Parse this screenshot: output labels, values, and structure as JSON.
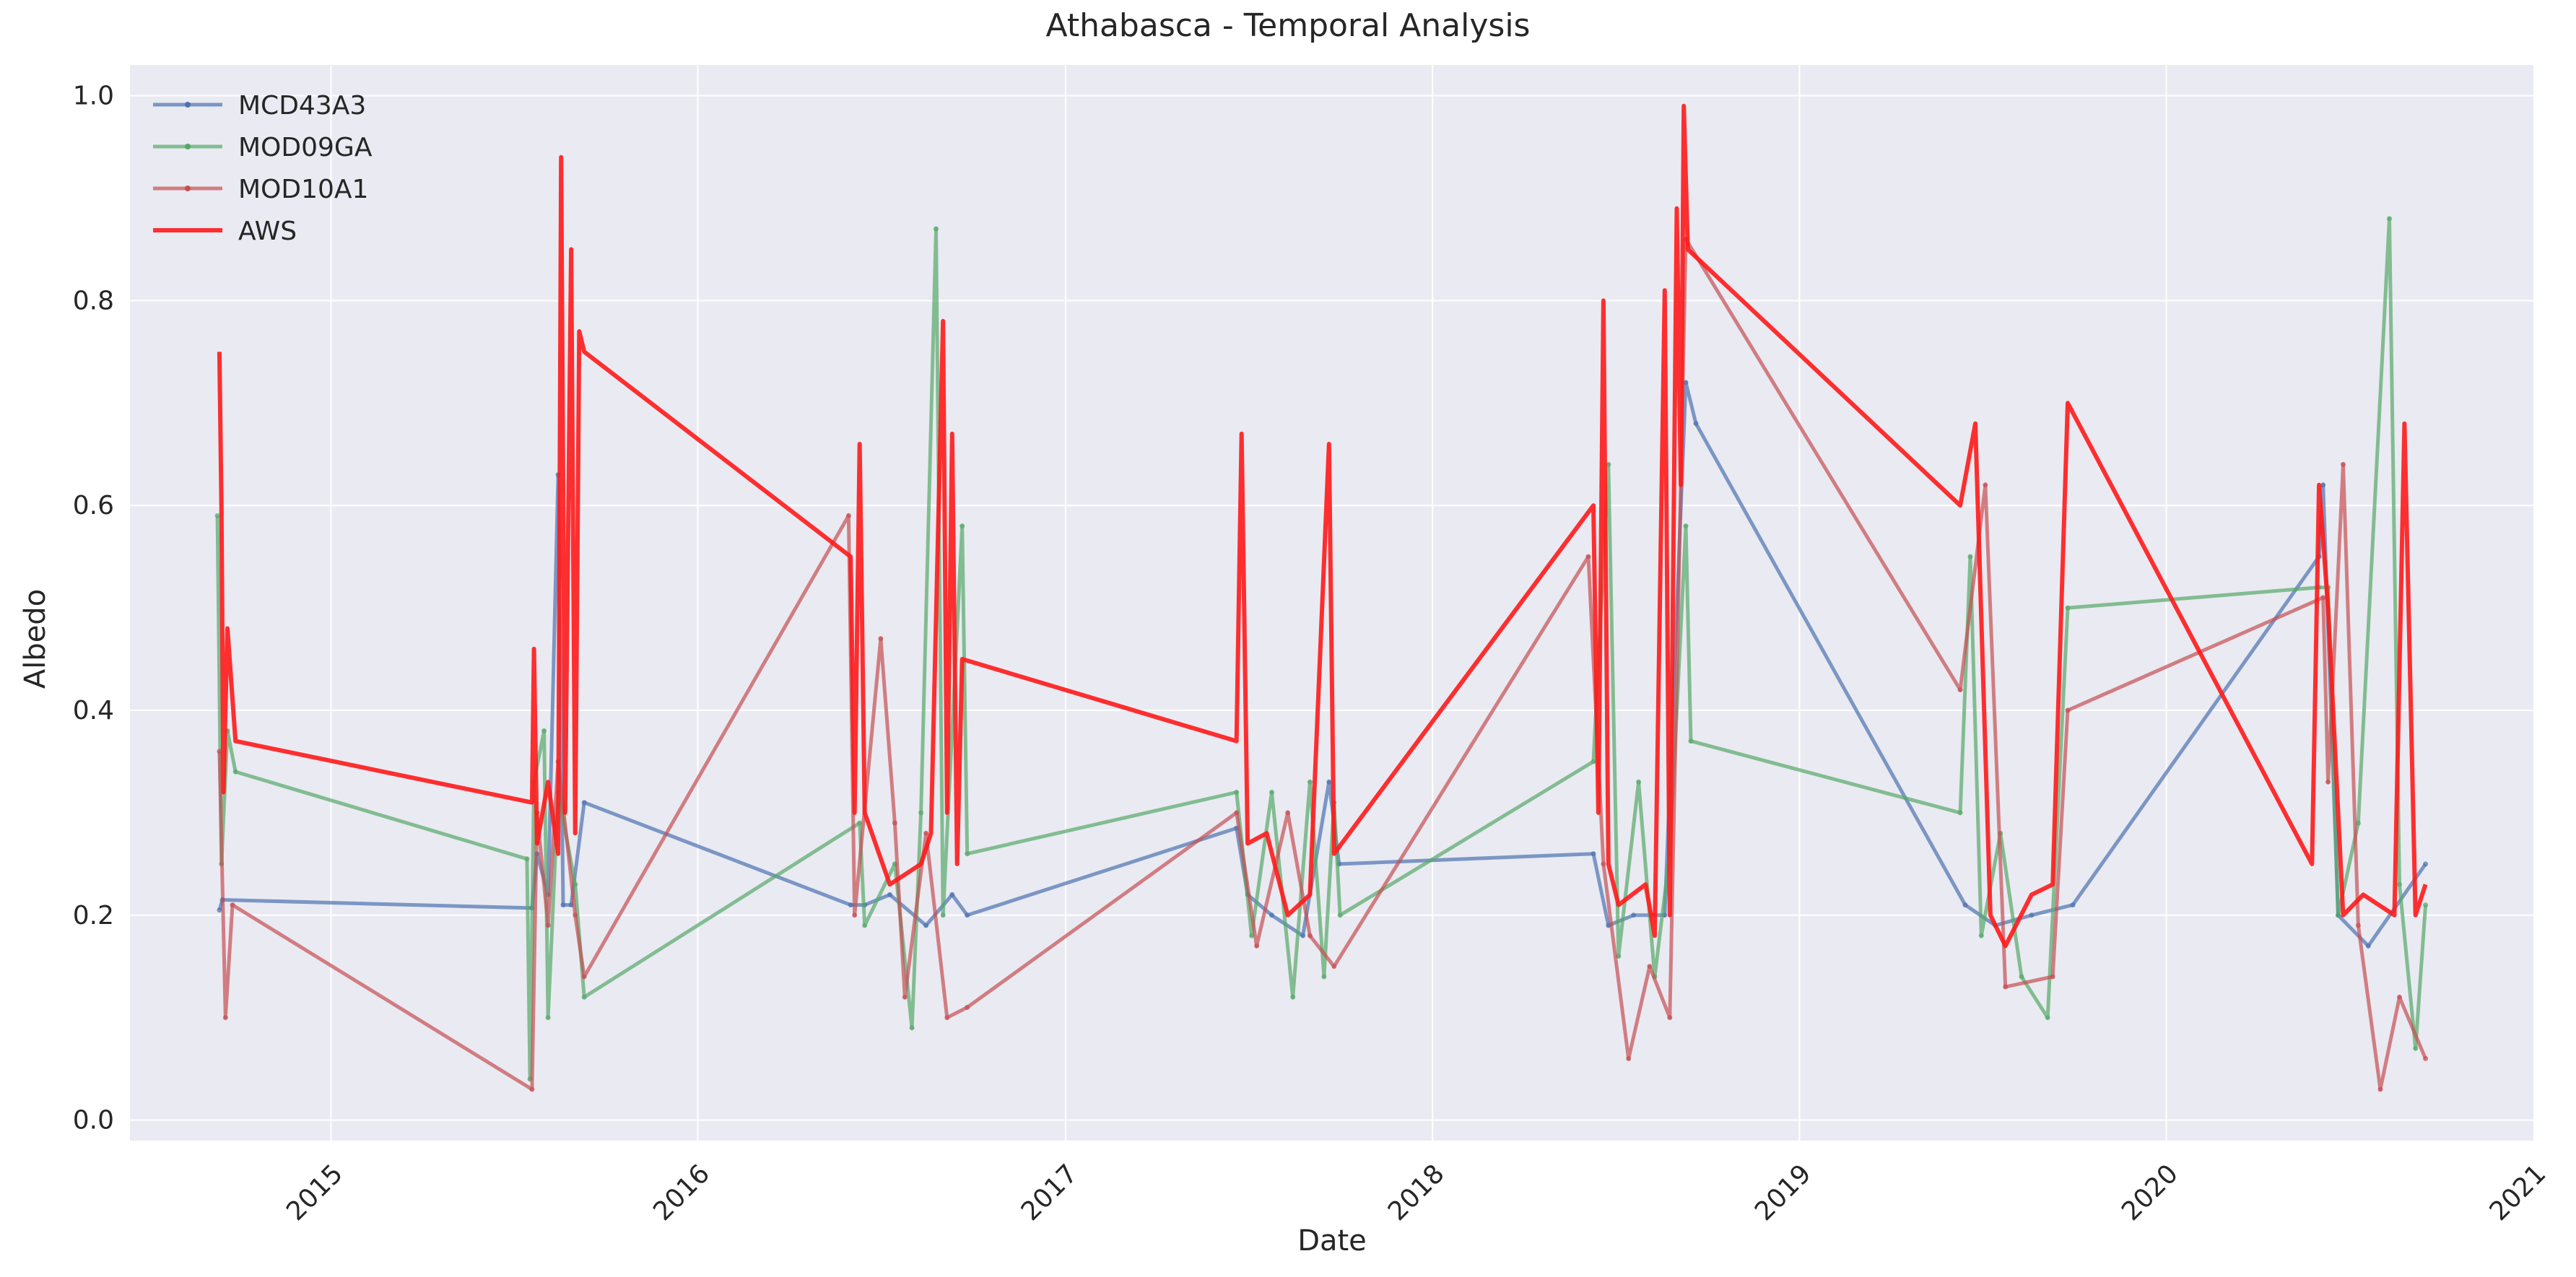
{
  "chart_data": {
    "type": "line",
    "title": "Athabasca - Temporal Analysis",
    "xlabel": "Date",
    "ylabel": "Albedo",
    "xlim": [
      "2014-06-15",
      "2021-01-01"
    ],
    "ylim": [
      -0.02,
      1.03
    ],
    "x_ticks": [
      "2015",
      "2016",
      "2017",
      "2018",
      "2019",
      "2020",
      "2021"
    ],
    "y_ticks": [
      "0.0",
      "0.2",
      "0.4",
      "0.6",
      "0.8",
      "1.0"
    ],
    "grid": true,
    "legend_position": "top-left",
    "background_color": "#eaeaf2",
    "series": [
      {
        "name": "MCD43A3",
        "color": "#4c72b0",
        "points": [
          [
            "2014-09-12",
            0.205
          ],
          [
            "2014-09-15",
            0.215
          ],
          [
            "2015-07-20",
            0.207
          ],
          [
            "2015-07-25",
            0.26
          ],
          [
            "2015-08-05",
            0.22
          ],
          [
            "2015-08-15",
            0.63
          ],
          [
            "2015-08-20",
            0.21
          ],
          [
            "2015-08-28",
            0.21
          ],
          [
            "2015-09-10",
            0.31
          ],
          [
            "2016-06-01",
            0.21
          ],
          [
            "2016-06-15",
            0.21
          ],
          [
            "2016-07-10",
            0.22
          ],
          [
            "2016-08-15",
            0.19
          ],
          [
            "2016-09-10",
            0.22
          ],
          [
            "2016-09-25",
            0.2
          ],
          [
            "2017-06-20",
            0.285
          ],
          [
            "2017-07-01",
            0.22
          ],
          [
            "2017-07-25",
            0.2
          ],
          [
            "2017-08-25",
            0.18
          ],
          [
            "2017-09-20",
            0.33
          ],
          [
            "2017-09-30",
            0.25
          ],
          [
            "2018-06-10",
            0.26
          ],
          [
            "2018-06-25",
            0.19
          ],
          [
            "2018-07-20",
            0.2
          ],
          [
            "2018-08-20",
            0.2
          ],
          [
            "2018-09-10",
            0.72
          ],
          [
            "2018-09-20",
            0.68
          ],
          [
            "2019-06-15",
            0.21
          ],
          [
            "2019-07-15",
            0.19
          ],
          [
            "2019-08-20",
            0.2
          ],
          [
            "2019-09-30",
            0.21
          ],
          [
            "2020-06-01",
            0.55
          ],
          [
            "2020-06-05",
            0.62
          ],
          [
            "2020-06-20",
            0.2
          ],
          [
            "2020-07-20",
            0.17
          ],
          [
            "2020-09-15",
            0.25
          ]
        ]
      },
      {
        "name": "MOD09GA",
        "color": "#55a868",
        "points": [
          [
            "2014-09-10",
            0.59
          ],
          [
            "2014-09-14",
            0.25
          ],
          [
            "2014-09-20",
            0.38
          ],
          [
            "2014-09-28",
            0.34
          ],
          [
            "2015-07-15",
            0.255
          ],
          [
            "2015-07-18",
            0.04
          ],
          [
            "2015-07-22",
            0.33
          ],
          [
            "2015-08-01",
            0.38
          ],
          [
            "2015-08-05",
            0.1
          ],
          [
            "2015-08-15",
            0.32
          ],
          [
            "2015-09-01",
            0.23
          ],
          [
            "2015-09-10",
            0.12
          ],
          [
            "2016-06-10",
            0.29
          ],
          [
            "2016-06-15",
            0.19
          ],
          [
            "2016-07-15",
            0.25
          ],
          [
            "2016-08-01",
            0.09
          ],
          [
            "2016-08-10",
            0.3
          ],
          [
            "2016-08-25",
            0.87
          ],
          [
            "2016-09-01",
            0.2
          ],
          [
            "2016-09-20",
            0.58
          ],
          [
            "2016-09-25",
            0.26
          ],
          [
            "2017-06-20",
            0.32
          ],
          [
            "2017-07-05",
            0.18
          ],
          [
            "2017-07-25",
            0.32
          ],
          [
            "2017-08-15",
            0.12
          ],
          [
            "2017-09-01",
            0.33
          ],
          [
            "2017-09-15",
            0.14
          ],
          [
            "2017-09-25",
            0.31
          ],
          [
            "2017-10-01",
            0.2
          ],
          [
            "2018-06-10",
            0.35
          ],
          [
            "2018-06-25",
            0.64
          ],
          [
            "2018-07-05",
            0.16
          ],
          [
            "2018-07-25",
            0.33
          ],
          [
            "2018-08-10",
            0.14
          ],
          [
            "2018-08-25",
            0.26
          ],
          [
            "2018-09-10",
            0.58
          ],
          [
            "2018-09-15",
            0.37
          ],
          [
            "2019-06-10",
            0.3
          ],
          [
            "2019-06-20",
            0.55
          ],
          [
            "2019-07-01",
            0.18
          ],
          [
            "2019-07-20",
            0.28
          ],
          [
            "2019-08-10",
            0.14
          ],
          [
            "2019-09-05",
            0.1
          ],
          [
            "2019-09-25",
            0.5
          ],
          [
            "2020-06-01",
            0.52
          ],
          [
            "2020-06-10",
            0.52
          ],
          [
            "2020-06-20",
            0.2
          ],
          [
            "2020-07-10",
            0.29
          ],
          [
            "2020-08-10",
            0.88
          ],
          [
            "2020-08-20",
            0.23
          ],
          [
            "2020-09-05",
            0.07
          ],
          [
            "2020-09-15",
            0.21
          ]
        ]
      },
      {
        "name": "MOD10A1",
        "color": "#c44e52",
        "points": [
          [
            "2014-09-12",
            0.36
          ],
          [
            "2014-09-18",
            0.1
          ],
          [
            "2014-09-25",
            0.21
          ],
          [
            "2015-07-20",
            0.03
          ],
          [
            "2015-07-25",
            0.3
          ],
          [
            "2015-08-05",
            0.19
          ],
          [
            "2015-08-15",
            0.35
          ],
          [
            "2015-09-01",
            0.2
          ],
          [
            "2015-09-10",
            0.14
          ],
          [
            "2016-05-30",
            0.59
          ],
          [
            "2016-06-05",
            0.2
          ],
          [
            "2016-07-01",
            0.47
          ],
          [
            "2016-07-15",
            0.29
          ],
          [
            "2016-07-25",
            0.12
          ],
          [
            "2016-08-15",
            0.28
          ],
          [
            "2016-09-05",
            0.1
          ],
          [
            "2016-09-25",
            0.11
          ],
          [
            "2017-06-20",
            0.3
          ],
          [
            "2017-07-10",
            0.17
          ],
          [
            "2017-08-10",
            0.3
          ],
          [
            "2017-09-01",
            0.18
          ],
          [
            "2017-09-25",
            0.15
          ],
          [
            "2018-06-05",
            0.55
          ],
          [
            "2018-06-20",
            0.25
          ],
          [
            "2018-07-15",
            0.06
          ],
          [
            "2018-08-05",
            0.15
          ],
          [
            "2018-08-25",
            0.1
          ],
          [
            "2018-09-10",
            0.86
          ],
          [
            "2019-06-10",
            0.42
          ],
          [
            "2019-07-05",
            0.62
          ],
          [
            "2019-07-25",
            0.13
          ],
          [
            "2019-09-10",
            0.14
          ],
          [
            "2019-09-25",
            0.4
          ],
          [
            "2020-06-05",
            0.51
          ],
          [
            "2020-06-10",
            0.33
          ],
          [
            "2020-06-25",
            0.64
          ],
          [
            "2020-07-10",
            0.19
          ],
          [
            "2020-08-01",
            0.03
          ],
          [
            "2020-08-20",
            0.12
          ],
          [
            "2020-09-15",
            0.06
          ]
        ]
      },
      {
        "name": "AWS",
        "color": "#ff1a1a",
        "points": [
          [
            "2014-09-12",
            0.75
          ],
          [
            "2014-09-14",
            0.6
          ],
          [
            "2014-09-16",
            0.32
          ],
          [
            "2014-09-20",
            0.48
          ],
          [
            "2014-09-28",
            0.37
          ],
          [
            "2015-07-20",
            0.31
          ],
          [
            "2015-07-22",
            0.46
          ],
          [
            "2015-07-25",
            0.27
          ],
          [
            "2015-08-05",
            0.33
          ],
          [
            "2015-08-15",
            0.26
          ],
          [
            "2015-08-18",
            0.94
          ],
          [
            "2015-08-22",
            0.3
          ],
          [
            "2015-08-28",
            0.85
          ],
          [
            "2015-09-01",
            0.28
          ],
          [
            "2015-09-05",
            0.77
          ],
          [
            "2015-09-10",
            0.75
          ],
          [
            "2016-06-01",
            0.55
          ],
          [
            "2016-06-05",
            0.3
          ],
          [
            "2016-06-10",
            0.66
          ],
          [
            "2016-06-15",
            0.3
          ],
          [
            "2016-07-10",
            0.23
          ],
          [
            "2016-08-10",
            0.25
          ],
          [
            "2016-08-20",
            0.28
          ],
          [
            "2016-09-01",
            0.78
          ],
          [
            "2016-09-05",
            0.3
          ],
          [
            "2016-09-10",
            0.67
          ],
          [
            "2016-09-15",
            0.25
          ],
          [
            "2016-09-20",
            0.45
          ],
          [
            "2017-06-20",
            0.37
          ],
          [
            "2017-06-25",
            0.67
          ],
          [
            "2017-07-01",
            0.27
          ],
          [
            "2017-07-20",
            0.28
          ],
          [
            "2017-08-10",
            0.2
          ],
          [
            "2017-09-01",
            0.22
          ],
          [
            "2017-09-20",
            0.66
          ],
          [
            "2017-09-25",
            0.26
          ],
          [
            "2018-06-10",
            0.6
          ],
          [
            "2018-06-15",
            0.3
          ],
          [
            "2018-06-20",
            0.8
          ],
          [
            "2018-06-25",
            0.25
          ],
          [
            "2018-07-05",
            0.21
          ],
          [
            "2018-08-01",
            0.23
          ],
          [
            "2018-08-10",
            0.18
          ],
          [
            "2018-08-20",
            0.81
          ],
          [
            "2018-08-25",
            0.2
          ],
          [
            "2018-09-01",
            0.89
          ],
          [
            "2018-09-05",
            0.62
          ],
          [
            "2018-09-08",
            0.99
          ],
          [
            "2018-09-12",
            0.85
          ],
          [
            "2019-06-10",
            0.6
          ],
          [
            "2019-06-25",
            0.68
          ],
          [
            "2019-07-10",
            0.2
          ],
          [
            "2019-07-25",
            0.17
          ],
          [
            "2019-08-20",
            0.22
          ],
          [
            "2019-09-10",
            0.23
          ],
          [
            "2019-09-25",
            0.7
          ],
          [
            "2020-05-25",
            0.25
          ],
          [
            "2020-06-01",
            0.62
          ],
          [
            "2020-06-10",
            0.5
          ],
          [
            "2020-06-25",
            0.2
          ],
          [
            "2020-07-15",
            0.22
          ],
          [
            "2020-08-15",
            0.2
          ],
          [
            "2020-08-25",
            0.68
          ],
          [
            "2020-09-05",
            0.2
          ],
          [
            "2020-09-15",
            0.23
          ]
        ]
      }
    ]
  }
}
